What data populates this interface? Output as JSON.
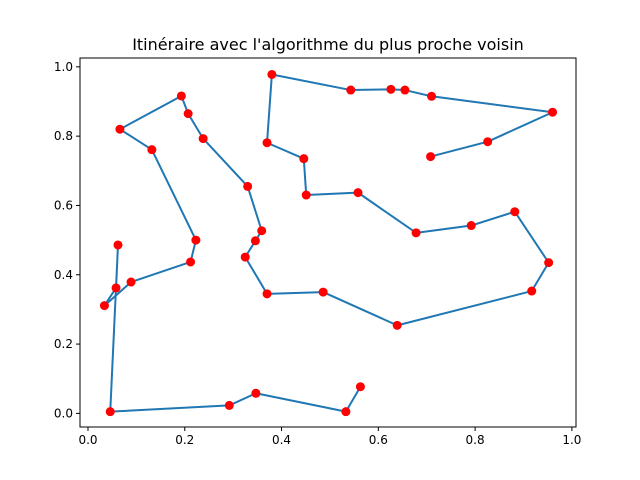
{
  "chart_data": {
    "type": "line",
    "title": "Itinéraire avec l'algorithme du plus proche voisin",
    "xlabel": "",
    "ylabel": "",
    "xlim": [
      -0.0165,
      1.0085
    ],
    "ylim": [
      -0.0393,
      1.0255
    ],
    "xticks": [
      0.0,
      0.2,
      0.4,
      0.6,
      0.8,
      1.0
    ],
    "yticks": [
      0.0,
      0.2,
      0.4,
      0.6,
      0.8,
      1.0
    ],
    "xtick_labels": [
      "0.0",
      "0.2",
      "0.4",
      "0.6",
      "0.8",
      "1.0"
    ],
    "ytick_labels": [
      "0.0",
      "0.2",
      "0.4",
      "0.6",
      "0.8",
      "1.0"
    ],
    "grid": false,
    "route_color": "#1f77b4",
    "point_color": "#ff0000",
    "route": [
      [
        0.563,
        0.077
      ],
      [
        0.533,
        0.005
      ],
      [
        0.347,
        0.058
      ],
      [
        0.292,
        0.023
      ],
      [
        0.046,
        0.005
      ],
      [
        0.062,
        0.486
      ],
      [
        0.058,
        0.362
      ],
      [
        0.034,
        0.311
      ],
      [
        0.089,
        0.379
      ],
      [
        0.212,
        0.437
      ],
      [
        0.223,
        0.5
      ],
      [
        0.132,
        0.761
      ],
      [
        0.066,
        0.82
      ],
      [
        0.193,
        0.916
      ],
      [
        0.207,
        0.865
      ],
      [
        0.238,
        0.793
      ],
      [
        0.33,
        0.655
      ],
      [
        0.359,
        0.527
      ],
      [
        0.346,
        0.498
      ],
      [
        0.325,
        0.451
      ],
      [
        0.37,
        0.345
      ],
      [
        0.486,
        0.35
      ],
      [
        0.639,
        0.254
      ],
      [
        0.917,
        0.353
      ],
      [
        0.952,
        0.435
      ],
      [
        0.882,
        0.582
      ],
      [
        0.792,
        0.542
      ],
      [
        0.678,
        0.521
      ],
      [
        0.558,
        0.637
      ],
      [
        0.451,
        0.63
      ],
      [
        0.446,
        0.735
      ],
      [
        0.37,
        0.781
      ],
      [
        0.38,
        0.978
      ],
      [
        0.543,
        0.933
      ],
      [
        0.626,
        0.935
      ],
      [
        0.655,
        0.933
      ],
      [
        0.71,
        0.915
      ],
      [
        0.96,
        0.869
      ],
      [
        0.826,
        0.784
      ],
      [
        0.708,
        0.741
      ]
    ]
  }
}
